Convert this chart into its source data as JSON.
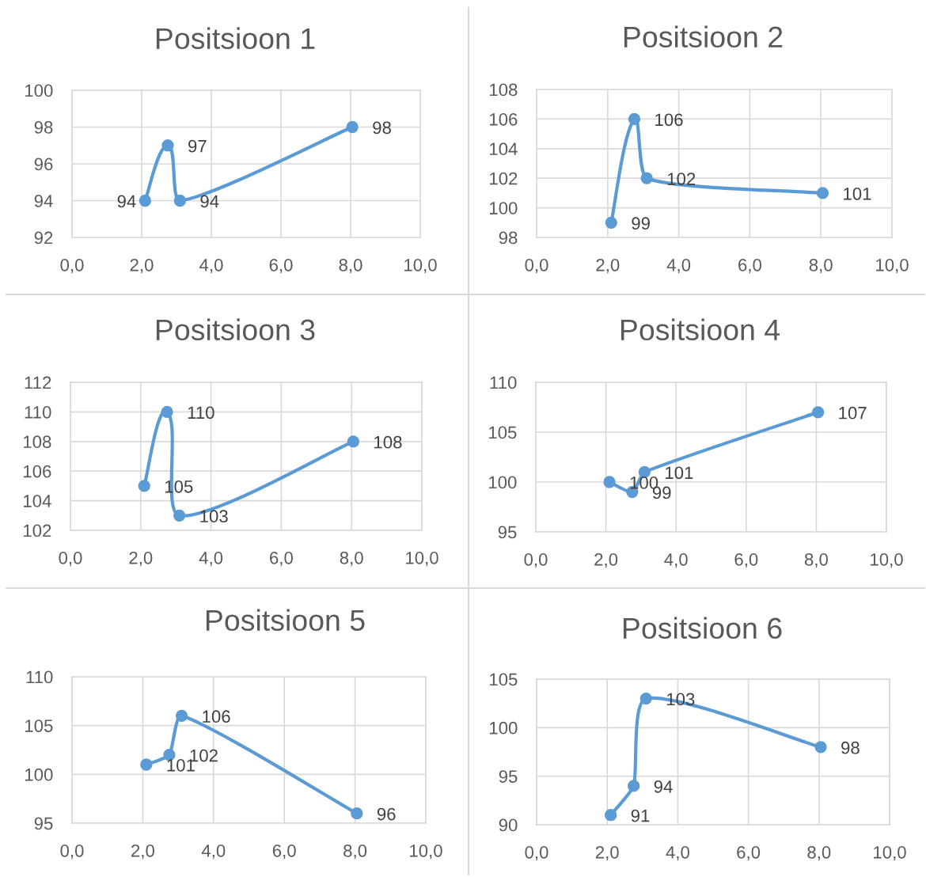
{
  "chart_data": [
    {
      "type": "line",
      "title": "Positsioon 1",
      "x": [
        2.1,
        2.75,
        3.1,
        8.05
      ],
      "series": [
        {
          "color": "#5b9bd5",
          "values": [
            94,
            97,
            94,
            98
          ]
        }
      ],
      "xlim": [
        0,
        10
      ],
      "xticks": [
        {
          "value": 0,
          "label": "0,0"
        },
        {
          "value": 2,
          "label": "2,0"
        },
        {
          "value": 4,
          "label": "4,0"
        },
        {
          "value": 6,
          "label": "6,0"
        },
        {
          "value": 8,
          "label": "8,0"
        },
        {
          "value": 10,
          "label": "10,0"
        }
      ],
      "ylim": [
        92,
        100
      ],
      "yticks": [
        92,
        94,
        96,
        98,
        100
      ],
      "grid": true,
      "marker": "circle",
      "line_style": "solid",
      "data_labels": true
    },
    {
      "type": "line",
      "title": "Positsioon 2",
      "x": [
        2.1,
        2.75,
        3.1,
        8.05
      ],
      "series": [
        {
          "color": "#5b9bd5",
          "values": [
            99,
            106,
            102,
            101
          ]
        }
      ],
      "xlim": [
        0,
        10
      ],
      "xticks": [
        {
          "value": 0,
          "label": "0,0"
        },
        {
          "value": 2,
          "label": "2,0"
        },
        {
          "value": 4,
          "label": "4,0"
        },
        {
          "value": 6,
          "label": "6,0"
        },
        {
          "value": 8,
          "label": "8,0"
        },
        {
          "value": 10,
          "label": "10,0"
        }
      ],
      "ylim": [
        98,
        108
      ],
      "yticks": [
        98,
        100,
        102,
        104,
        106,
        108
      ],
      "grid": true,
      "marker": "circle",
      "line_style": "solid",
      "data_labels": true
    },
    {
      "type": "line",
      "title": "Positsioon 3",
      "x": [
        2.1,
        2.75,
        3.1,
        8.05
      ],
      "series": [
        {
          "color": "#5b9bd5",
          "values": [
            105,
            110,
            103,
            108
          ]
        }
      ],
      "xlim": [
        0,
        10
      ],
      "xticks": [
        {
          "value": 0,
          "label": "0,0"
        },
        {
          "value": 2,
          "label": "2,0"
        },
        {
          "value": 4,
          "label": "4,0"
        },
        {
          "value": 6,
          "label": "6,0"
        },
        {
          "value": 8,
          "label": "8,0"
        },
        {
          "value": 10,
          "label": "10,0"
        }
      ],
      "ylim": [
        102,
        112
      ],
      "yticks": [
        102,
        104,
        106,
        108,
        110,
        112
      ],
      "grid": true,
      "marker": "circle",
      "line_style": "solid",
      "data_labels": true
    },
    {
      "type": "line",
      "title": "Positsioon 4",
      "x": [
        2.1,
        2.75,
        3.1,
        8.05
      ],
      "series": [
        {
          "color": "#5b9bd5",
          "values": [
            100,
            99,
            101,
            107
          ]
        }
      ],
      "xlim": [
        0,
        10
      ],
      "xticks": [
        {
          "value": 0,
          "label": "0,0"
        },
        {
          "value": 2,
          "label": "2,0"
        },
        {
          "value": 4,
          "label": "4,0"
        },
        {
          "value": 6,
          "label": "6,0"
        },
        {
          "value": 8,
          "label": "8,0"
        },
        {
          "value": 10,
          "label": "10,0"
        }
      ],
      "ylim": [
        95,
        110
      ],
      "yticks": [
        95,
        100,
        105,
        110
      ],
      "grid": true,
      "marker": "circle",
      "line_style": "solid",
      "data_labels": true
    },
    {
      "type": "line",
      "title": "Positsioon 5",
      "x": [
        2.1,
        2.75,
        3.1,
        8.05
      ],
      "series": [
        {
          "color": "#5b9bd5",
          "values": [
            101,
            102,
            106,
            96
          ]
        }
      ],
      "xlim": [
        0,
        10
      ],
      "xticks": [
        {
          "value": 0,
          "label": "0,0"
        },
        {
          "value": 2,
          "label": "2,0"
        },
        {
          "value": 4,
          "label": "4,0"
        },
        {
          "value": 6,
          "label": "6,0"
        },
        {
          "value": 8,
          "label": "8,0"
        },
        {
          "value": 10,
          "label": "10,0"
        }
      ],
      "ylim": [
        95,
        110
      ],
      "yticks": [
        95,
        100,
        105,
        110
      ],
      "grid": true,
      "marker": "circle",
      "line_style": "solid",
      "data_labels": true
    },
    {
      "type": "line",
      "title": "Positsioon 6",
      "x": [
        2.1,
        2.75,
        3.1,
        8.05
      ],
      "series": [
        {
          "color": "#5b9bd5",
          "values": [
            91,
            94,
            103,
            98
          ]
        }
      ],
      "xlim": [
        0,
        10
      ],
      "xticks": [
        {
          "value": 0,
          "label": "0,0"
        },
        {
          "value": 2,
          "label": "2,0"
        },
        {
          "value": 4,
          "label": "4,0"
        },
        {
          "value": 6,
          "label": "6,0"
        },
        {
          "value": 8,
          "label": "8,0"
        },
        {
          "value": 10,
          "label": "10,0"
        }
      ],
      "ylim": [
        90,
        105
      ],
      "yticks": [
        90,
        95,
        100,
        105
      ],
      "grid": true,
      "marker": "circle",
      "line_style": "solid",
      "data_labels": true
    }
  ]
}
